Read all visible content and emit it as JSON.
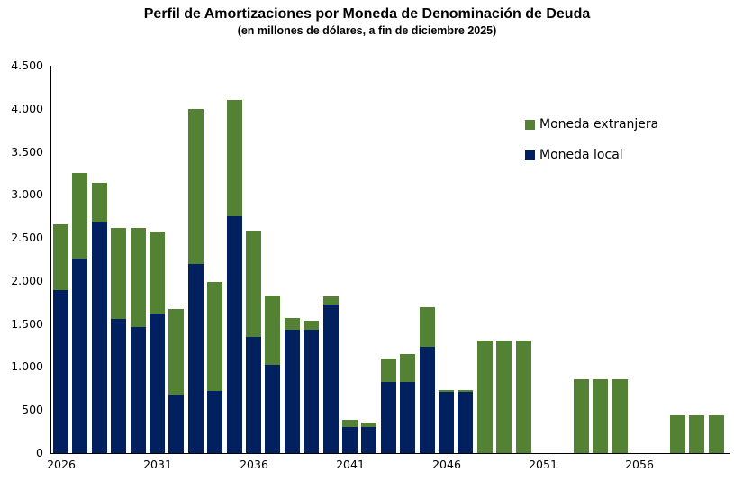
{
  "header": {
    "title": "Perfil de Amortizaciones por Moneda de Denominación de Deuda",
    "subtitle": "(en millones de dólares, a fin de diciembre 2025)"
  },
  "legend": {
    "items": [
      {
        "label": "Moneda extranjera",
        "color": "#548235"
      },
      {
        "label": "Moneda local",
        "color": "#002060"
      }
    ]
  },
  "colors": {
    "moneda_extranjera": "#548235",
    "moneda_local": "#002060",
    "axis": "#000000",
    "background": "#ffffff",
    "text": "#000000"
  },
  "chart_data": {
    "type": "bar",
    "stacked": true,
    "title": "Perfil de Amortizaciones por Moneda de Denominación de Deuda",
    "subtitle": "(en millones de dólares, a fin de diciembre 2025)",
    "unit": "millones de dólares",
    "x": [
      2026,
      2027,
      2028,
      2029,
      2030,
      2031,
      2032,
      2033,
      2034,
      2035,
      2036,
      2037,
      2038,
      2039,
      2040,
      2041,
      2042,
      2043,
      2044,
      2045,
      2046,
      2047,
      2048,
      2049,
      2050,
      2051,
      2052,
      2053,
      2054,
      2055,
      2056,
      2057,
      2058,
      2059,
      2060
    ],
    "series": [
      {
        "name": "Moneda local",
        "color": "#002060",
        "values": [
          1890,
          2260,
          2690,
          1560,
          1470,
          1620,
          680,
          2200,
          720,
          2750,
          1350,
          1030,
          1430,
          1430,
          1730,
          300,
          300,
          830,
          830,
          1240,
          710,
          710,
          0,
          0,
          0,
          0,
          0,
          0,
          0,
          0,
          0,
          0,
          0,
          0,
          0
        ]
      },
      {
        "name": "Moneda extranjera",
        "color": "#548235",
        "values": [
          770,
          990,
          450,
          1060,
          1150,
          950,
          990,
          1800,
          1270,
          1350,
          1230,
          800,
          140,
          110,
          90,
          90,
          60,
          270,
          320,
          460,
          20,
          20,
          1310,
          1310,
          1310,
          0,
          0,
          860,
          860,
          860,
          0,
          0,
          435,
          435,
          435
        ]
      }
    ],
    "ylim": [
      0,
      4500
    ],
    "y_tick_step": 500,
    "y_tick_labels": [
      "0",
      "500",
      "1.000",
      "1.500",
      "2.000",
      "2.500",
      "3.000",
      "3.500",
      "4.000",
      "4.500"
    ],
    "x_tick_labels": [
      "2026",
      "2031",
      "2036",
      "2041",
      "2046",
      "2051",
      "2056"
    ],
    "grid": false,
    "legend_position": "inside-upper-right"
  }
}
